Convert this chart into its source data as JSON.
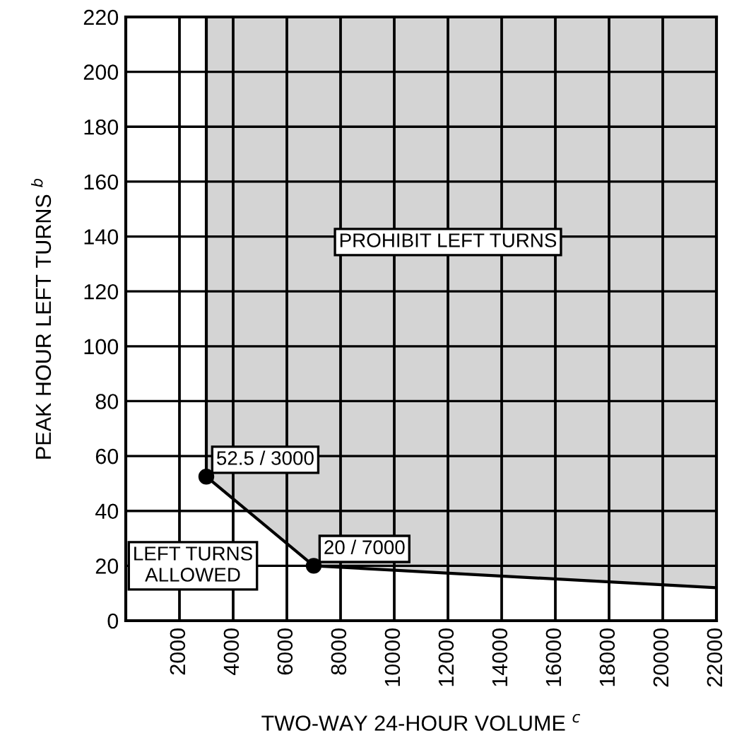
{
  "chart_data": {
    "type": "line",
    "xlabel": "TWO-WAY 24-HOUR VOLUME $^{c}$",
    "ylabel": "PEAK HOUR LEFT TURNS $^{b}$",
    "xlim": [
      0,
      22000
    ],
    "ylim": [
      0,
      220
    ],
    "xticks": [
      2000,
      4000,
      6000,
      8000,
      10000,
      12000,
      14000,
      16000,
      18000,
      20000,
      22000
    ],
    "yticks": [
      0,
      20,
      40,
      60,
      80,
      100,
      120,
      140,
      160,
      180,
      200,
      220
    ],
    "grid": true,
    "marker": "none",
    "line_style": "solid",
    "series": [
      {
        "color": "#000000",
        "x": [
          3000,
          7000,
          22000
        ],
        "values": [
          52.5,
          20,
          12
        ],
        "lower": [
          52.5,
          20,
          12
        ],
        "upper": [
          220,
          220,
          220
        ]
      },
      {
        "type": "scatter",
        "color": "#000000",
        "marker": "circle",
        "x": [
          3000,
          7000
        ],
        "values": [
          52.5,
          20
        ]
      }
    ],
    "annotations": [
      {
        "text": "52.5 / 3000",
        "x": 3000,
        "y": 52.5
      },
      {
        "text": "20 / 7000",
        "x": 7000,
        "y": 20
      },
      "PROHIBIT LEFT TURNS",
      "LEFT TURNS\nALLOWED"
    ]
  }
}
